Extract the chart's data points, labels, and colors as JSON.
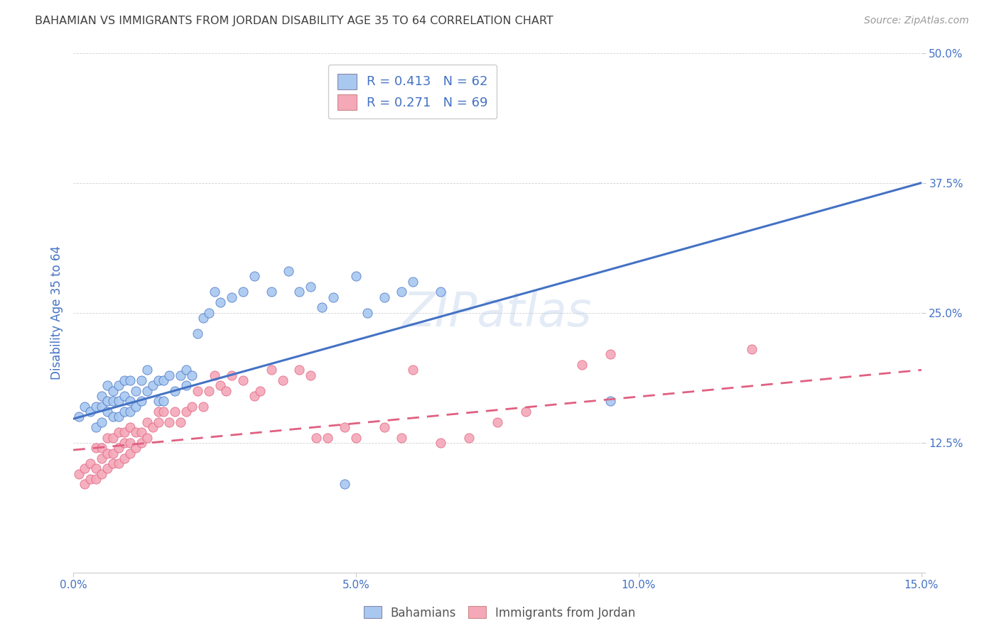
{
  "title": "BAHAMIAN VS IMMIGRANTS FROM JORDAN DISABILITY AGE 35 TO 64 CORRELATION CHART",
  "source": "Source: ZipAtlas.com",
  "ylabel": "Disability Age 35 to 64",
  "xlim": [
    0.0,
    0.15
  ],
  "ylim": [
    0.0,
    0.5
  ],
  "xticks": [
    0.0,
    0.05,
    0.1,
    0.15
  ],
  "xtick_labels": [
    "0.0%",
    "5.0%",
    "10.0%",
    "15.0%"
  ],
  "yticks": [
    0.0,
    0.125,
    0.25,
    0.375,
    0.5
  ],
  "ytick_labels": [
    "",
    "12.5%",
    "25.0%",
    "37.5%",
    "50.0%"
  ],
  "legend_r_blue": "R = 0.413",
  "legend_n_blue": "N = 62",
  "legend_r_pink": "R = 0.271",
  "legend_n_pink": "N = 69",
  "blue_color": "#A8C8F0",
  "pink_color": "#F4A8B8",
  "line_blue": "#4472C4",
  "line_pink": "#E06080",
  "title_color": "#404040",
  "axis_label_color": "#4472C4",
  "tick_color": "#4472C4",
  "background_color": "#FFFFFF",
  "blue_line_y0": 0.148,
  "blue_line_y1": 0.375,
  "pink_line_y0": 0.118,
  "pink_line_y1": 0.195,
  "blue_scatter_x": [
    0.001,
    0.002,
    0.003,
    0.004,
    0.004,
    0.005,
    0.005,
    0.005,
    0.006,
    0.006,
    0.006,
    0.007,
    0.007,
    0.007,
    0.008,
    0.008,
    0.008,
    0.009,
    0.009,
    0.009,
    0.01,
    0.01,
    0.01,
    0.011,
    0.011,
    0.012,
    0.012,
    0.013,
    0.013,
    0.014,
    0.015,
    0.015,
    0.016,
    0.016,
    0.017,
    0.018,
    0.019,
    0.02,
    0.02,
    0.021,
    0.022,
    0.023,
    0.024,
    0.025,
    0.026,
    0.028,
    0.03,
    0.032,
    0.035,
    0.038,
    0.04,
    0.042,
    0.044,
    0.046,
    0.05,
    0.052,
    0.055,
    0.058,
    0.06,
    0.065,
    0.095,
    0.048
  ],
  "blue_scatter_y": [
    0.15,
    0.16,
    0.155,
    0.14,
    0.16,
    0.145,
    0.16,
    0.17,
    0.155,
    0.165,
    0.18,
    0.15,
    0.165,
    0.175,
    0.15,
    0.165,
    0.18,
    0.155,
    0.17,
    0.185,
    0.155,
    0.165,
    0.185,
    0.16,
    0.175,
    0.165,
    0.185,
    0.175,
    0.195,
    0.18,
    0.165,
    0.185,
    0.165,
    0.185,
    0.19,
    0.175,
    0.19,
    0.18,
    0.195,
    0.19,
    0.23,
    0.245,
    0.25,
    0.27,
    0.26,
    0.265,
    0.27,
    0.285,
    0.27,
    0.29,
    0.27,
    0.275,
    0.255,
    0.265,
    0.285,
    0.25,
    0.265,
    0.27,
    0.28,
    0.27,
    0.165,
    0.085
  ],
  "pink_scatter_x": [
    0.001,
    0.002,
    0.002,
    0.003,
    0.003,
    0.004,
    0.004,
    0.004,
    0.005,
    0.005,
    0.005,
    0.006,
    0.006,
    0.006,
    0.007,
    0.007,
    0.007,
    0.008,
    0.008,
    0.008,
    0.009,
    0.009,
    0.009,
    0.01,
    0.01,
    0.01,
    0.011,
    0.011,
    0.012,
    0.012,
    0.013,
    0.013,
    0.014,
    0.015,
    0.015,
    0.016,
    0.017,
    0.018,
    0.019,
    0.02,
    0.021,
    0.022,
    0.023,
    0.024,
    0.025,
    0.026,
    0.027,
    0.028,
    0.03,
    0.032,
    0.033,
    0.035,
    0.037,
    0.04,
    0.042,
    0.043,
    0.045,
    0.048,
    0.05,
    0.055,
    0.058,
    0.06,
    0.065,
    0.07,
    0.075,
    0.08,
    0.09,
    0.095,
    0.12
  ],
  "pink_scatter_y": [
    0.095,
    0.085,
    0.1,
    0.09,
    0.105,
    0.09,
    0.1,
    0.12,
    0.095,
    0.11,
    0.12,
    0.1,
    0.115,
    0.13,
    0.105,
    0.115,
    0.13,
    0.105,
    0.12,
    0.135,
    0.11,
    0.125,
    0.135,
    0.115,
    0.125,
    0.14,
    0.12,
    0.135,
    0.125,
    0.135,
    0.13,
    0.145,
    0.14,
    0.155,
    0.145,
    0.155,
    0.145,
    0.155,
    0.145,
    0.155,
    0.16,
    0.175,
    0.16,
    0.175,
    0.19,
    0.18,
    0.175,
    0.19,
    0.185,
    0.17,
    0.175,
    0.195,
    0.185,
    0.195,
    0.19,
    0.13,
    0.13,
    0.14,
    0.13,
    0.14,
    0.13,
    0.195,
    0.125,
    0.13,
    0.145,
    0.155,
    0.2,
    0.21,
    0.215
  ]
}
